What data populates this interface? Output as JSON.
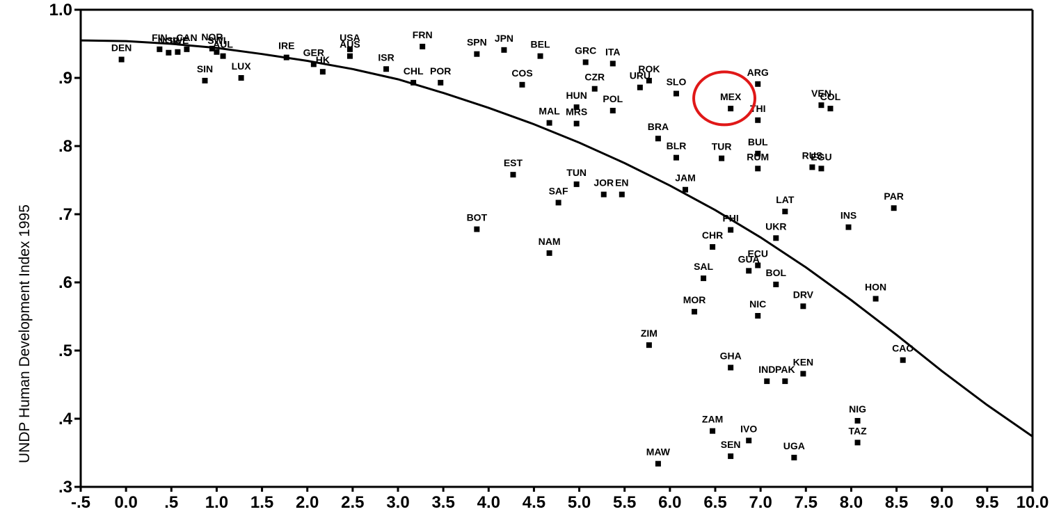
{
  "chart_data": {
    "type": "scatter",
    "title": "",
    "xlabel": "",
    "ylabel": "UNDP Human Development Index 1995",
    "xlim": [
      -0.5,
      10.0
    ],
    "ylim": [
      0.3,
      1.0
    ],
    "x_ticks": [
      -0.5,
      0.0,
      0.5,
      1.0,
      1.5,
      2.0,
      2.5,
      3.0,
      3.5,
      4.0,
      4.5,
      5.0,
      5.5,
      6.0,
      6.5,
      7.0,
      7.5,
      8.0,
      8.5,
      9.0,
      9.5,
      10.0
    ],
    "x_tick_labels": [
      "-.5",
      "0.0",
      ".5",
      "1.0",
      "1.5",
      "2.0",
      "2.5",
      "3.0",
      "3.5",
      "4.0",
      "4.5",
      "5.0",
      "5.5",
      "6.0",
      "6.5",
      "7.0",
      "7.5",
      "8.0",
      "8.5",
      "9.0",
      "9.5",
      "10.0"
    ],
    "y_ticks": [
      0.3,
      0.4,
      0.5,
      0.6,
      0.7,
      0.8,
      0.9,
      1.0
    ],
    "y_tick_labels": [
      ".3",
      ".4",
      ".5",
      ".6",
      ".7",
      ".8",
      ".9",
      "1.0"
    ],
    "grid": false,
    "points": [
      {
        "label": "DEN",
        "x": -0.05,
        "y": 0.927
      },
      {
        "label": "FIN",
        "x": 0.37,
        "y": 0.942
      },
      {
        "label": "NOR",
        "x": 0.47,
        "y": 0.937
      },
      {
        "label": "SWE",
        "x": 0.57,
        "y": 0.938
      },
      {
        "label": "CAN",
        "x": 0.67,
        "y": 0.942
      },
      {
        "label": "NOR",
        "x": 0.95,
        "y": 0.943
      },
      {
        "label": "SWI",
        "x": 1.0,
        "y": 0.938
      },
      {
        "label": "AUL",
        "x": 1.07,
        "y": 0.932
      },
      {
        "label": "SIN",
        "x": 0.87,
        "y": 0.896
      },
      {
        "label": "LUX",
        "x": 1.27,
        "y": 0.9
      },
      {
        "label": "IRE",
        "x": 1.77,
        "y": 0.93
      },
      {
        "label": "GER",
        "x": 2.07,
        "y": 0.92
      },
      {
        "label": "HK",
        "x": 2.17,
        "y": 0.909
      },
      {
        "label": "USA",
        "x": 2.47,
        "y": 0.942
      },
      {
        "label": "AUS",
        "x": 2.47,
        "y": 0.932
      },
      {
        "label": "ISR",
        "x": 2.87,
        "y": 0.913
      },
      {
        "label": "FRN",
        "x": 3.27,
        "y": 0.946
      },
      {
        "label": "CHL",
        "x": 3.17,
        "y": 0.893
      },
      {
        "label": "POR",
        "x": 3.47,
        "y": 0.893
      },
      {
        "label": "SPN",
        "x": 3.87,
        "y": 0.935
      },
      {
        "label": "JPN",
        "x": 4.17,
        "y": 0.941
      },
      {
        "label": "BEL",
        "x": 4.57,
        "y": 0.932
      },
      {
        "label": "COS",
        "x": 4.37,
        "y": 0.89
      },
      {
        "label": "GRC",
        "x": 5.07,
        "y": 0.923
      },
      {
        "label": "ITA",
        "x": 5.37,
        "y": 0.921
      },
      {
        "label": "CZR",
        "x": 5.17,
        "y": 0.884
      },
      {
        "label": "HUN",
        "x": 4.97,
        "y": 0.857
      },
      {
        "label": "POL",
        "x": 5.37,
        "y": 0.852
      },
      {
        "label": "MAL",
        "x": 4.67,
        "y": 0.834
      },
      {
        "label": "MRS",
        "x": 4.97,
        "y": 0.833
      },
      {
        "label": "URU",
        "x": 5.67,
        "y": 0.886
      },
      {
        "label": "ROK",
        "x": 5.77,
        "y": 0.896
      },
      {
        "label": "SLO",
        "x": 6.07,
        "y": 0.877
      },
      {
        "label": "MEX",
        "x": 6.67,
        "y": 0.855
      },
      {
        "label": "ARG",
        "x": 6.97,
        "y": 0.891
      },
      {
        "label": "THI",
        "x": 6.97,
        "y": 0.838
      },
      {
        "label": "VEN",
        "x": 7.67,
        "y": 0.86
      },
      {
        "label": "COL",
        "x": 7.77,
        "y": 0.855
      },
      {
        "label": "BRA",
        "x": 5.87,
        "y": 0.811
      },
      {
        "label": "BLR",
        "x": 6.07,
        "y": 0.783
      },
      {
        "label": "TUR",
        "x": 6.57,
        "y": 0.782
      },
      {
        "label": "BUL",
        "x": 6.97,
        "y": 0.789
      },
      {
        "label": "RUM",
        "x": 6.97,
        "y": 0.767
      },
      {
        "label": "RUS",
        "x": 7.57,
        "y": 0.769
      },
      {
        "label": "EGU",
        "x": 7.67,
        "y": 0.767
      },
      {
        "label": "EST",
        "x": 4.27,
        "y": 0.758
      },
      {
        "label": "TUN",
        "x": 4.97,
        "y": 0.744
      },
      {
        "label": "SAF",
        "x": 4.77,
        "y": 0.717
      },
      {
        "label": "JOR",
        "x": 5.27,
        "y": 0.729
      },
      {
        "label": "EN",
        "x": 5.47,
        "y": 0.729
      },
      {
        "label": "JAM",
        "x": 6.17,
        "y": 0.736
      },
      {
        "label": "LAT",
        "x": 7.27,
        "y": 0.704
      },
      {
        "label": "PAR",
        "x": 8.47,
        "y": 0.709
      },
      {
        "label": "BOT",
        "x": 3.87,
        "y": 0.678
      },
      {
        "label": "PHI",
        "x": 6.67,
        "y": 0.677
      },
      {
        "label": "INS",
        "x": 7.97,
        "y": 0.681
      },
      {
        "label": "UKR",
        "x": 7.17,
        "y": 0.665
      },
      {
        "label": "CHR",
        "x": 6.47,
        "y": 0.652
      },
      {
        "label": "NAM",
        "x": 4.67,
        "y": 0.643
      },
      {
        "label": "SAL",
        "x": 6.37,
        "y": 0.606
      },
      {
        "label": "GUA",
        "x": 6.87,
        "y": 0.617
      },
      {
        "label": "ECU",
        "x": 6.97,
        "y": 0.625
      },
      {
        "label": "BOL",
        "x": 7.17,
        "y": 0.597
      },
      {
        "label": "HON",
        "x": 8.27,
        "y": 0.576
      },
      {
        "label": "DRV",
        "x": 7.47,
        "y": 0.565
      },
      {
        "label": "MOR",
        "x": 6.27,
        "y": 0.557
      },
      {
        "label": "NIC",
        "x": 6.97,
        "y": 0.551
      },
      {
        "label": "ZIM",
        "x": 5.77,
        "y": 0.508
      },
      {
        "label": "CAO",
        "x": 8.57,
        "y": 0.486
      },
      {
        "label": "GHA",
        "x": 6.67,
        "y": 0.475
      },
      {
        "label": "IND",
        "x": 7.07,
        "y": 0.455
      },
      {
        "label": "PAK",
        "x": 7.27,
        "y": 0.455
      },
      {
        "label": "KEN",
        "x": 7.47,
        "y": 0.466
      },
      {
        "label": "NIG",
        "x": 8.07,
        "y": 0.397
      },
      {
        "label": "ZAM",
        "x": 6.47,
        "y": 0.382
      },
      {
        "label": "IVO",
        "x": 6.87,
        "y": 0.368
      },
      {
        "label": "TAZ",
        "x": 8.07,
        "y": 0.365
      },
      {
        "label": "SEN",
        "x": 6.67,
        "y": 0.345
      },
      {
        "label": "UGA",
        "x": 7.37,
        "y": 0.343
      },
      {
        "label": "MAW",
        "x": 5.87,
        "y": 0.334
      }
    ],
    "fit_curve": {
      "x": [
        -0.5,
        0.0,
        0.5,
        1.0,
        1.5,
        2.0,
        2.5,
        3.0,
        3.5,
        4.0,
        4.5,
        5.0,
        5.5,
        6.0,
        6.5,
        7.0,
        7.5,
        8.0,
        8.5,
        9.0,
        9.5,
        10.0
      ],
      "y": [
        0.955,
        0.954,
        0.95,
        0.944,
        0.935,
        0.925,
        0.913,
        0.898,
        0.878,
        0.856,
        0.832,
        0.805,
        0.775,
        0.742,
        0.706,
        0.666,
        0.622,
        0.574,
        0.523,
        0.47,
        0.42,
        0.374
      ]
    },
    "highlight": {
      "label": "MEX",
      "x": 6.6,
      "y": 0.87,
      "color": "#e01818"
    }
  }
}
